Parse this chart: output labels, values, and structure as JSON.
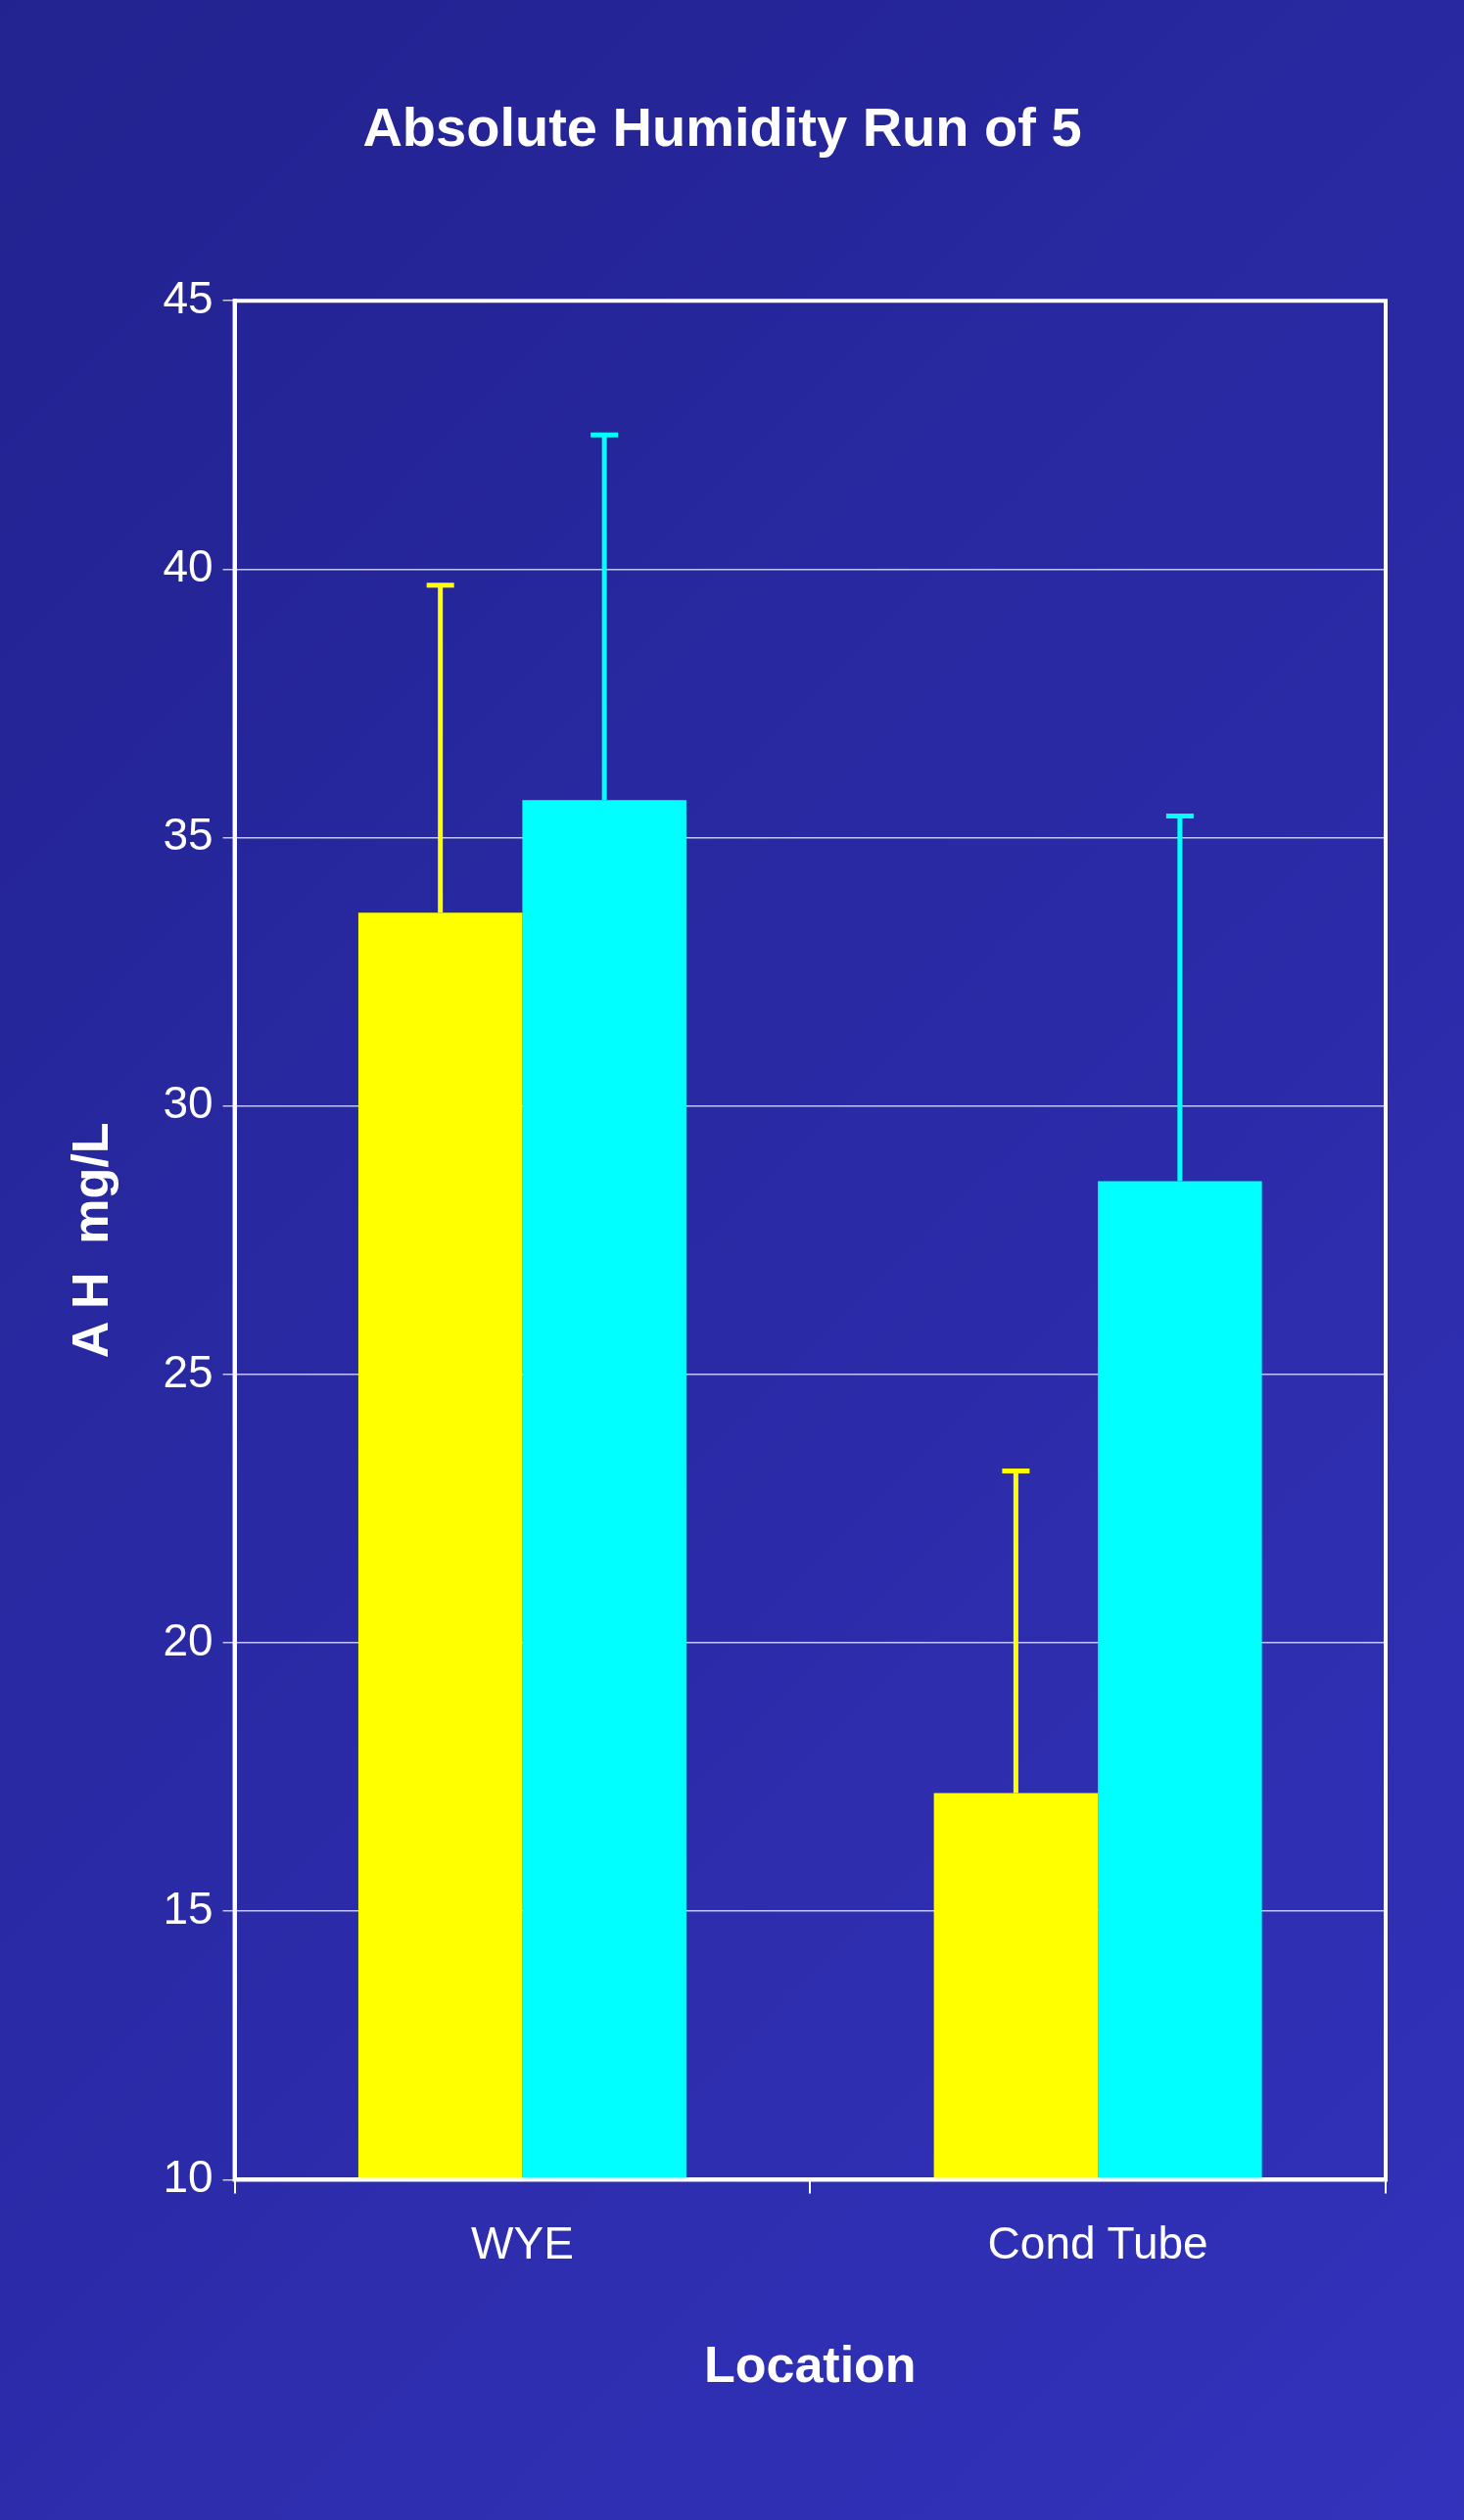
{
  "chart_data": {
    "type": "bar",
    "title": "Absolute Humidity Run of 5",
    "xlabel": "Location",
    "ylabel": "A H  mg/L",
    "categories": [
      "WYE",
      "Cond Tube"
    ],
    "series": [
      {
        "color": "#ffff00",
        "values": [
          33.6,
          17.2
        ],
        "errors": [
          [
            33.6,
            39.7
          ],
          [
            17.2,
            23.2
          ]
        ]
      },
      {
        "color": "#00ffff",
        "values": [
          35.7,
          28.6
        ],
        "errors": [
          [
            35.7,
            42.5
          ],
          [
            28.6,
            35.4
          ]
        ]
      }
    ],
    "ylim": [
      10,
      45
    ],
    "yticks": [
      10,
      15,
      20,
      25,
      30,
      35,
      40,
      45
    ],
    "grid": "y"
  }
}
